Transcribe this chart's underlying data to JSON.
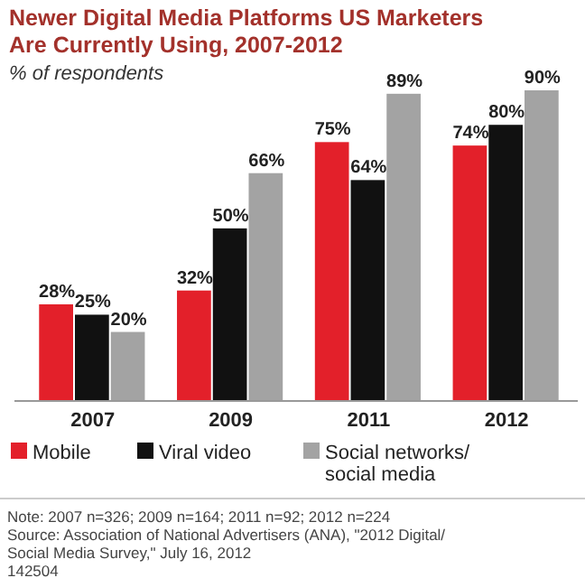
{
  "chart_data": {
    "type": "bar",
    "title": "Newer Digital Media Platforms US Marketers Are Currently Using, 2007-2012",
    "subtitle": "% of respondents",
    "categories": [
      "2007",
      "2009",
      "2011",
      "2012"
    ],
    "series": [
      {
        "name": "Mobile",
        "color": "#e3202a",
        "values": [
          28,
          32,
          75,
          74
        ],
        "value_labels": [
          "28%",
          "32%",
          "75%",
          "74%"
        ]
      },
      {
        "name": "Viral video",
        "color": "#111111",
        "values": [
          25,
          50,
          64,
          80
        ],
        "value_labels": [
          "25%",
          "50%",
          "64%",
          "80%"
        ]
      },
      {
        "name": "Social networks/social media",
        "color": "#a3a3a3",
        "values": [
          20,
          66,
          89,
          90
        ],
        "value_labels": [
          "20%",
          "66%",
          "89%",
          "90%"
        ]
      }
    ],
    "legend": "bottom",
    "annotations": [
      "Note: 2007 n=326; 2009 n=164; 2011 n=92; 2012 n=224",
      "Source: Association of National Advertisers (ANA), \"2012 Digital/Social Media Survey,\" July 16, 2012",
      "142504"
    ]
  }
}
